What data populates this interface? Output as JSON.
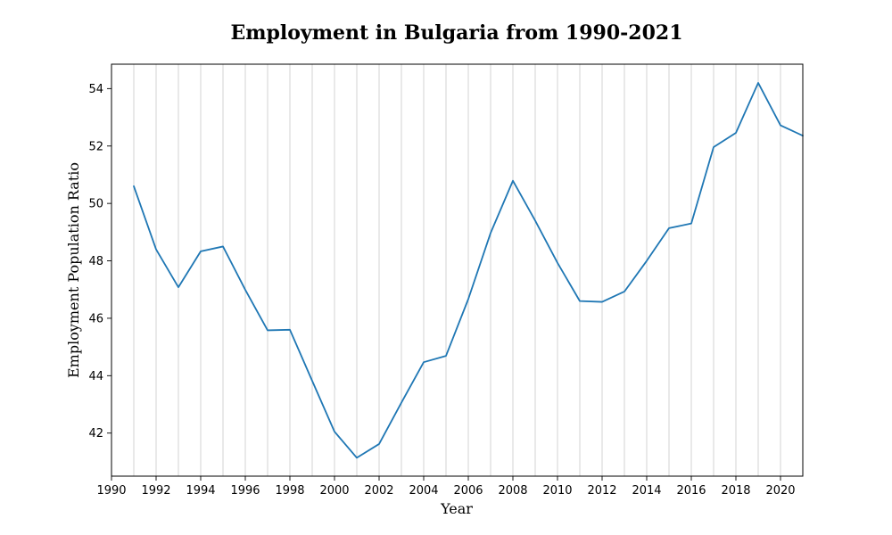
{
  "chart_data": {
    "type": "line",
    "title": "Employment in Bulgaria from 1990-2021",
    "xlabel": "Year",
    "ylabel": "Employment Population Ratio",
    "xlim": [
      1990,
      2021
    ],
    "ylim": [
      40.5,
      54.85
    ],
    "xticks": [
      1990,
      1992,
      1994,
      1996,
      1998,
      2000,
      2002,
      2004,
      2006,
      2008,
      2010,
      2012,
      2014,
      2016,
      2018,
      2020
    ],
    "yticks": [
      42,
      44,
      46,
      48,
      50,
      52,
      54
    ],
    "grid": "vertical lines at every year",
    "series_color": "#1f77b4",
    "series": [
      {
        "x": [
          1991,
          1992,
          1993,
          1994,
          1995,
          1996,
          1997,
          1998,
          1999,
          2000,
          2001,
          2002,
          2003,
          2004,
          2005,
          2006,
          2007,
          2008,
          2009,
          2010,
          2011,
          2012,
          2013,
          2014,
          2015,
          2016,
          2017,
          2018,
          2019,
          2020,
          2021
        ],
        "values": [
          50.6,
          48.4,
          47.08,
          48.33,
          48.5,
          46.99,
          45.58,
          45.6,
          43.82,
          42.05,
          41.14,
          41.62,
          43.06,
          44.47,
          44.69,
          46.67,
          48.97,
          50.79,
          49.4,
          47.93,
          46.6,
          46.57,
          46.93,
          48.0,
          49.14,
          49.3,
          51.96,
          52.46,
          54.2,
          52.72,
          52.36
        ]
      }
    ]
  }
}
